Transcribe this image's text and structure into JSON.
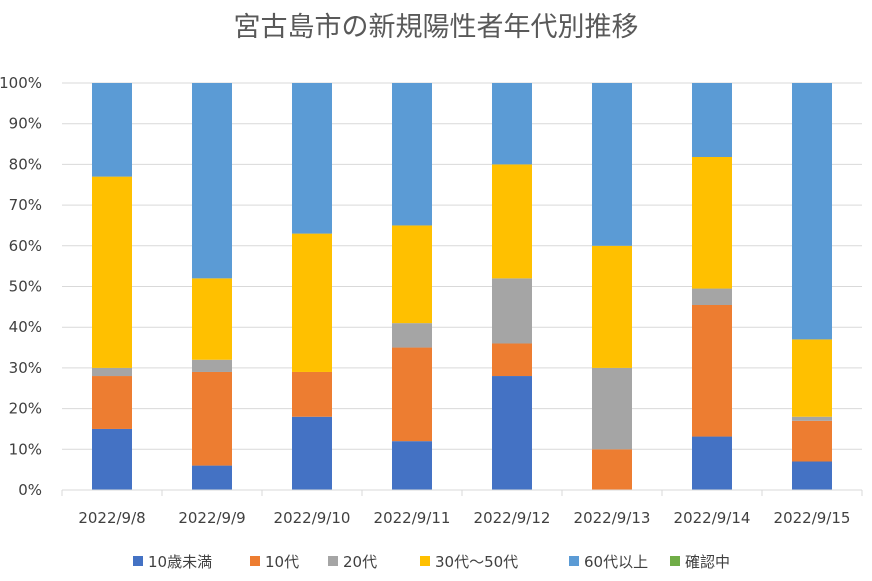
{
  "chart_data": {
    "type": "bar",
    "stacked": true,
    "normalized": true,
    "title": "宮古島市の新規陽性者年代別推移",
    "xlabel": "",
    "ylabel": "",
    "ylim": [
      0,
      100
    ],
    "y_ticks": [
      "0%",
      "10%",
      "20%",
      "30%",
      "40%",
      "50%",
      "60%",
      "70%",
      "80%",
      "90%",
      "100%"
    ],
    "categories": [
      "2022/9/8",
      "2022/9/9",
      "2022/9/10",
      "2022/9/11",
      "2022/9/12",
      "2022/9/13",
      "2022/9/14",
      "2022/9/15"
    ],
    "series": [
      {
        "name": "10歳未満",
        "color": "#4472C4",
        "values": [
          15,
          6,
          18,
          12,
          28,
          0,
          13,
          7
        ]
      },
      {
        "name": "10代",
        "color": "#ED7D31",
        "values": [
          13,
          23,
          11,
          23,
          8,
          10,
          32,
          10
        ]
      },
      {
        "name": "20代",
        "color": "#A5A5A5",
        "values": [
          2,
          3,
          0,
          6,
          16,
          20,
          4,
          1
        ]
      },
      {
        "name": "30代～50代",
        "color": "#FFC000",
        "values": [
          47,
          20,
          34,
          24,
          28,
          30,
          32,
          19
        ]
      },
      {
        "name": "60代以上",
        "color": "#5B9BD5",
        "values": [
          23,
          48,
          37,
          35,
          20,
          40,
          18,
          63
        ]
      },
      {
        "name": "確認中",
        "color": "#70AD47",
        "values": [
          0,
          0,
          0,
          0,
          0,
          0,
          0,
          0
        ]
      }
    ],
    "grid": true,
    "legend_position": "bottom"
  }
}
